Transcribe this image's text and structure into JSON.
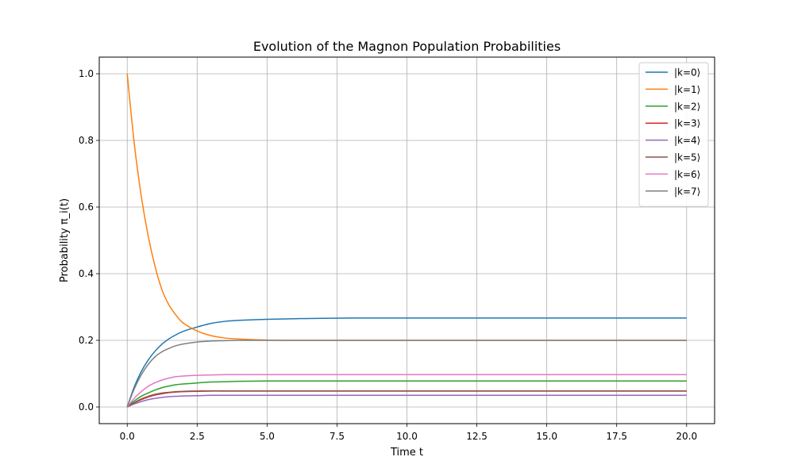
{
  "chart_data": {
    "type": "line",
    "title": "Evolution of the Magnon Population Probabilities",
    "xlabel": "Time t",
    "ylabel": "Probability π_i(t)",
    "xlim": [
      -1.0,
      21.0
    ],
    "ylim": [
      -0.05,
      1.05
    ],
    "xticks": [
      0.0,
      2.5,
      5.0,
      7.5,
      10.0,
      12.5,
      15.0,
      17.5,
      20.0
    ],
    "xtick_labels": [
      "0.0",
      "2.5",
      "5.0",
      "7.5",
      "10.0",
      "12.5",
      "15.0",
      "17.5",
      "20.0"
    ],
    "yticks": [
      0.0,
      0.2,
      0.4,
      0.6,
      0.8,
      1.0
    ],
    "ytick_labels": [
      "0.0",
      "0.2",
      "0.4",
      "0.6",
      "0.8",
      "1.0"
    ],
    "grid": true,
    "legend_position": "top-right",
    "x": [
      0,
      0.25,
      0.5,
      0.75,
      1,
      1.25,
      1.5,
      1.75,
      2,
      2.5,
      3,
      3.5,
      4,
      5,
      6,
      7,
      8,
      10,
      12,
      14,
      16,
      18,
      20
    ],
    "series": [
      {
        "name": "|k=0⟩",
        "color": "#1f77b4",
        "values": [
          0,
          0.06,
          0.106,
          0.141,
          0.168,
          0.189,
          0.205,
          0.217,
          0.227,
          0.24,
          0.251,
          0.257,
          0.26,
          0.263,
          0.265,
          0.266,
          0.267,
          0.267,
          0.267,
          0.267,
          0.267,
          0.267,
          0.267
        ]
      },
      {
        "name": "|k=1⟩",
        "color": "#ff7f0e",
        "values": [
          1.0,
          0.792,
          0.634,
          0.513,
          0.42,
          0.35,
          0.305,
          0.275,
          0.252,
          0.228,
          0.214,
          0.207,
          0.204,
          0.201,
          0.2,
          0.2,
          0.2,
          0.2,
          0.2,
          0.2,
          0.2,
          0.2,
          0.2
        ]
      },
      {
        "name": "|k=2⟩",
        "color": "#2ca02c",
        "values": [
          0,
          0.018,
          0.032,
          0.042,
          0.051,
          0.058,
          0.063,
          0.067,
          0.069,
          0.072,
          0.075,
          0.076,
          0.077,
          0.078,
          0.078,
          0.078,
          0.078,
          0.078,
          0.078,
          0.078,
          0.078,
          0.078,
          0.078
        ]
      },
      {
        "name": "|k=3⟩",
        "color": "#d62728",
        "values": [
          0,
          0.012,
          0.022,
          0.03,
          0.036,
          0.04,
          0.043,
          0.045,
          0.046,
          0.047,
          0.048,
          0.048,
          0.048,
          0.048,
          0.048,
          0.048,
          0.048,
          0.048,
          0.048,
          0.048,
          0.048,
          0.048,
          0.048
        ]
      },
      {
        "name": "|k=4⟩",
        "color": "#9467bd",
        "values": [
          0,
          0.009,
          0.016,
          0.022,
          0.026,
          0.029,
          0.031,
          0.032,
          0.033,
          0.034,
          0.035,
          0.035,
          0.035,
          0.035,
          0.035,
          0.035,
          0.035,
          0.035,
          0.035,
          0.035,
          0.035,
          0.035,
          0.035
        ]
      },
      {
        "name": "|k=5⟩",
        "color": "#8c564b",
        "values": [
          0,
          0.013,
          0.024,
          0.032,
          0.038,
          0.042,
          0.044,
          0.046,
          0.047,
          0.048,
          0.048,
          0.048,
          0.048,
          0.048,
          0.048,
          0.048,
          0.048,
          0.048,
          0.048,
          0.048,
          0.048,
          0.048,
          0.048
        ]
      },
      {
        "name": "|k=6⟩",
        "color": "#e377c2",
        "values": [
          0,
          0.026,
          0.046,
          0.062,
          0.073,
          0.081,
          0.087,
          0.091,
          0.093,
          0.095,
          0.096,
          0.097,
          0.097,
          0.097,
          0.097,
          0.097,
          0.097,
          0.097,
          0.097,
          0.097,
          0.097,
          0.097,
          0.097
        ]
      },
      {
        "name": "|k=7⟩",
        "color": "#7f7f7f",
        "values": [
          0,
          0.054,
          0.096,
          0.128,
          0.151,
          0.166,
          0.176,
          0.184,
          0.189,
          0.195,
          0.198,
          0.199,
          0.2,
          0.2,
          0.2,
          0.2,
          0.2,
          0.2,
          0.2,
          0.2,
          0.2,
          0.2,
          0.2
        ]
      }
    ]
  }
}
